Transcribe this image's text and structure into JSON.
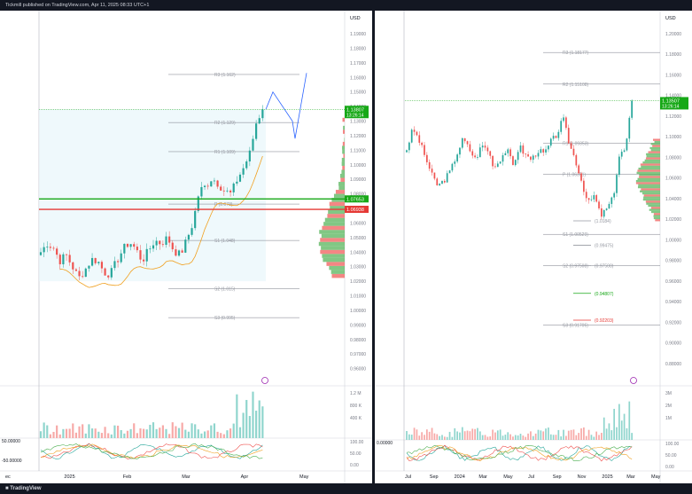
{
  "header": {
    "published_text": "Tickmill published on TradingView.com, Apr 11, 2025 08:33 UTC+1"
  },
  "footer": {
    "brand": "TradingView"
  },
  "colors": {
    "up": "#26a69a",
    "down": "#ef5350",
    "ma": "#f0a020",
    "accent_green": "#17a817",
    "accent_red": "#e53935",
    "grid": "#e6e9ef"
  },
  "chart_data": [
    {
      "type": "candlestick",
      "pane": "left",
      "currency": "USD",
      "ylim": [
        0.95,
        1.19
      ],
      "y_ticks": [
        "1.19000",
        "1.18000",
        "1.17000",
        "1.16000",
        "1.15000",
        "1.14000",
        "1.13000",
        "1.12000",
        "1.11000",
        "1.10000",
        "1.09000",
        "1.08000",
        "1.07000",
        "1.06000",
        "1.05000",
        "1.04000",
        "1.03000",
        "1.02000",
        "1.01000",
        "1.00000",
        "0.99000",
        "0.98000",
        "0.97000",
        "0.96000"
      ],
      "x_labels": [
        "ec",
        "2025",
        "Feb",
        "Mar",
        "Apr",
        "May"
      ],
      "pivot_levels": [
        {
          "label": "R3 (1.162)",
          "value": 1.162
        },
        {
          "label": "R2 (1.129)",
          "value": 1.129
        },
        {
          "label": "R1 (1.109)",
          "value": 1.109
        },
        {
          "label": "P (1.073)",
          "value": 1.073
        },
        {
          "label": "S1 (1.048)",
          "value": 1.048
        },
        {
          "label": "S2 (1.015)",
          "value": 1.015
        },
        {
          "label": "S3 (0.995)",
          "value": 0.995
        }
      ],
      "price_badges": [
        {
          "price": "1.13807",
          "time": "13:26:14",
          "color": "#17a817"
        },
        {
          "price": "1.07653",
          "color": "#17a817"
        },
        {
          "price": "1.06938",
          "color": "#e53935"
        }
      ],
      "price_series": [
        1.04,
        1.046,
        1.043,
        1.034,
        1.038,
        1.03,
        1.022,
        1.028,
        1.035,
        1.034,
        1.026,
        1.025,
        1.034,
        1.042,
        1.047,
        1.042,
        1.034,
        1.041,
        1.048,
        1.046,
        1.05,
        1.041,
        1.038,
        1.048,
        1.06,
        1.082,
        1.085,
        1.091,
        1.087,
        1.082,
        1.08,
        1.09,
        1.098,
        1.108,
        1.129,
        1.138
      ],
      "projection_path": [
        1.138,
        1.15,
        1.13,
        1.118,
        1.163
      ],
      "volume_axis": [
        "1.2 M",
        "800 K",
        "400 K"
      ],
      "oscillator": {
        "left_label": "50.00000",
        "left_label2": "-50.00000",
        "axis": [
          "100.00",
          "50.00",
          "0.00"
        ]
      }
    },
    {
      "type": "candlestick",
      "pane": "right",
      "currency": "USD",
      "ylim": [
        0.86,
        1.2
      ],
      "y_ticks": [
        "1.20000",
        "1.18000",
        "1.16000",
        "1.14000",
        "1.12000",
        "1.10000",
        "1.08000",
        "1.06000",
        "1.04000",
        "1.02000",
        "1.00000",
        "0.98000",
        "0.96000",
        "0.94000",
        "0.92000",
        "0.90000",
        "0.88000"
      ],
      "x_labels": [
        "Jul",
        "Sep",
        "2024",
        "Mar",
        "May",
        "Jul",
        "Sep",
        "Nov",
        "2025",
        "Mar",
        "May"
      ],
      "pivot_levels": [
        {
          "label": "R3 (1.18177)",
          "value": 1.18177
        },
        {
          "label": "R2 (1.15108)",
          "value": 1.15108
        },
        {
          "label": "R1 (1.09353)",
          "value": 1.09353
        },
        {
          "label": "P (1.06351)",
          "value": 1.06351
        },
        {
          "label": "S1 (1.00529)",
          "value": 1.00529
        },
        {
          "label": "S2 (0.97508)",
          "value": 0.97508
        },
        {
          "label": "S3 (0.91705)",
          "value": 0.91705
        }
      ],
      "extra_labels": [
        {
          "label": "(1.0184)",
          "value": 1.0184
        },
        {
          "label": "(0.99475)",
          "value": 0.99475
        },
        {
          "label": "(0.97508)",
          "value": 0.975
        },
        {
          "label": "(0.94807)",
          "value": 0.948
        },
        {
          "label": "(0.92203)",
          "value": 0.922
        }
      ],
      "price_badges": [
        {
          "price": "1.13507",
          "time": "13:26:14",
          "color": "#17a817"
        }
      ],
      "price_series": [
        1.088,
        1.108,
        1.096,
        1.08,
        1.063,
        1.052,
        1.058,
        1.067,
        1.083,
        1.098,
        1.088,
        1.078,
        1.092,
        1.087,
        1.07,
        1.079,
        1.088,
        1.072,
        1.091,
        1.082,
        1.078,
        1.087,
        1.083,
        1.095,
        1.102,
        1.118,
        1.093,
        1.077,
        1.056,
        1.035,
        1.043,
        1.023,
        1.03,
        1.041,
        1.082,
        1.088,
        1.135
      ],
      "volume_axis": [
        "3M",
        "2M",
        "1M"
      ],
      "oscillator": {
        "left_label": "0.00000",
        "axis": [
          "100.00",
          "50.00",
          "0.00"
        ]
      }
    }
  ]
}
